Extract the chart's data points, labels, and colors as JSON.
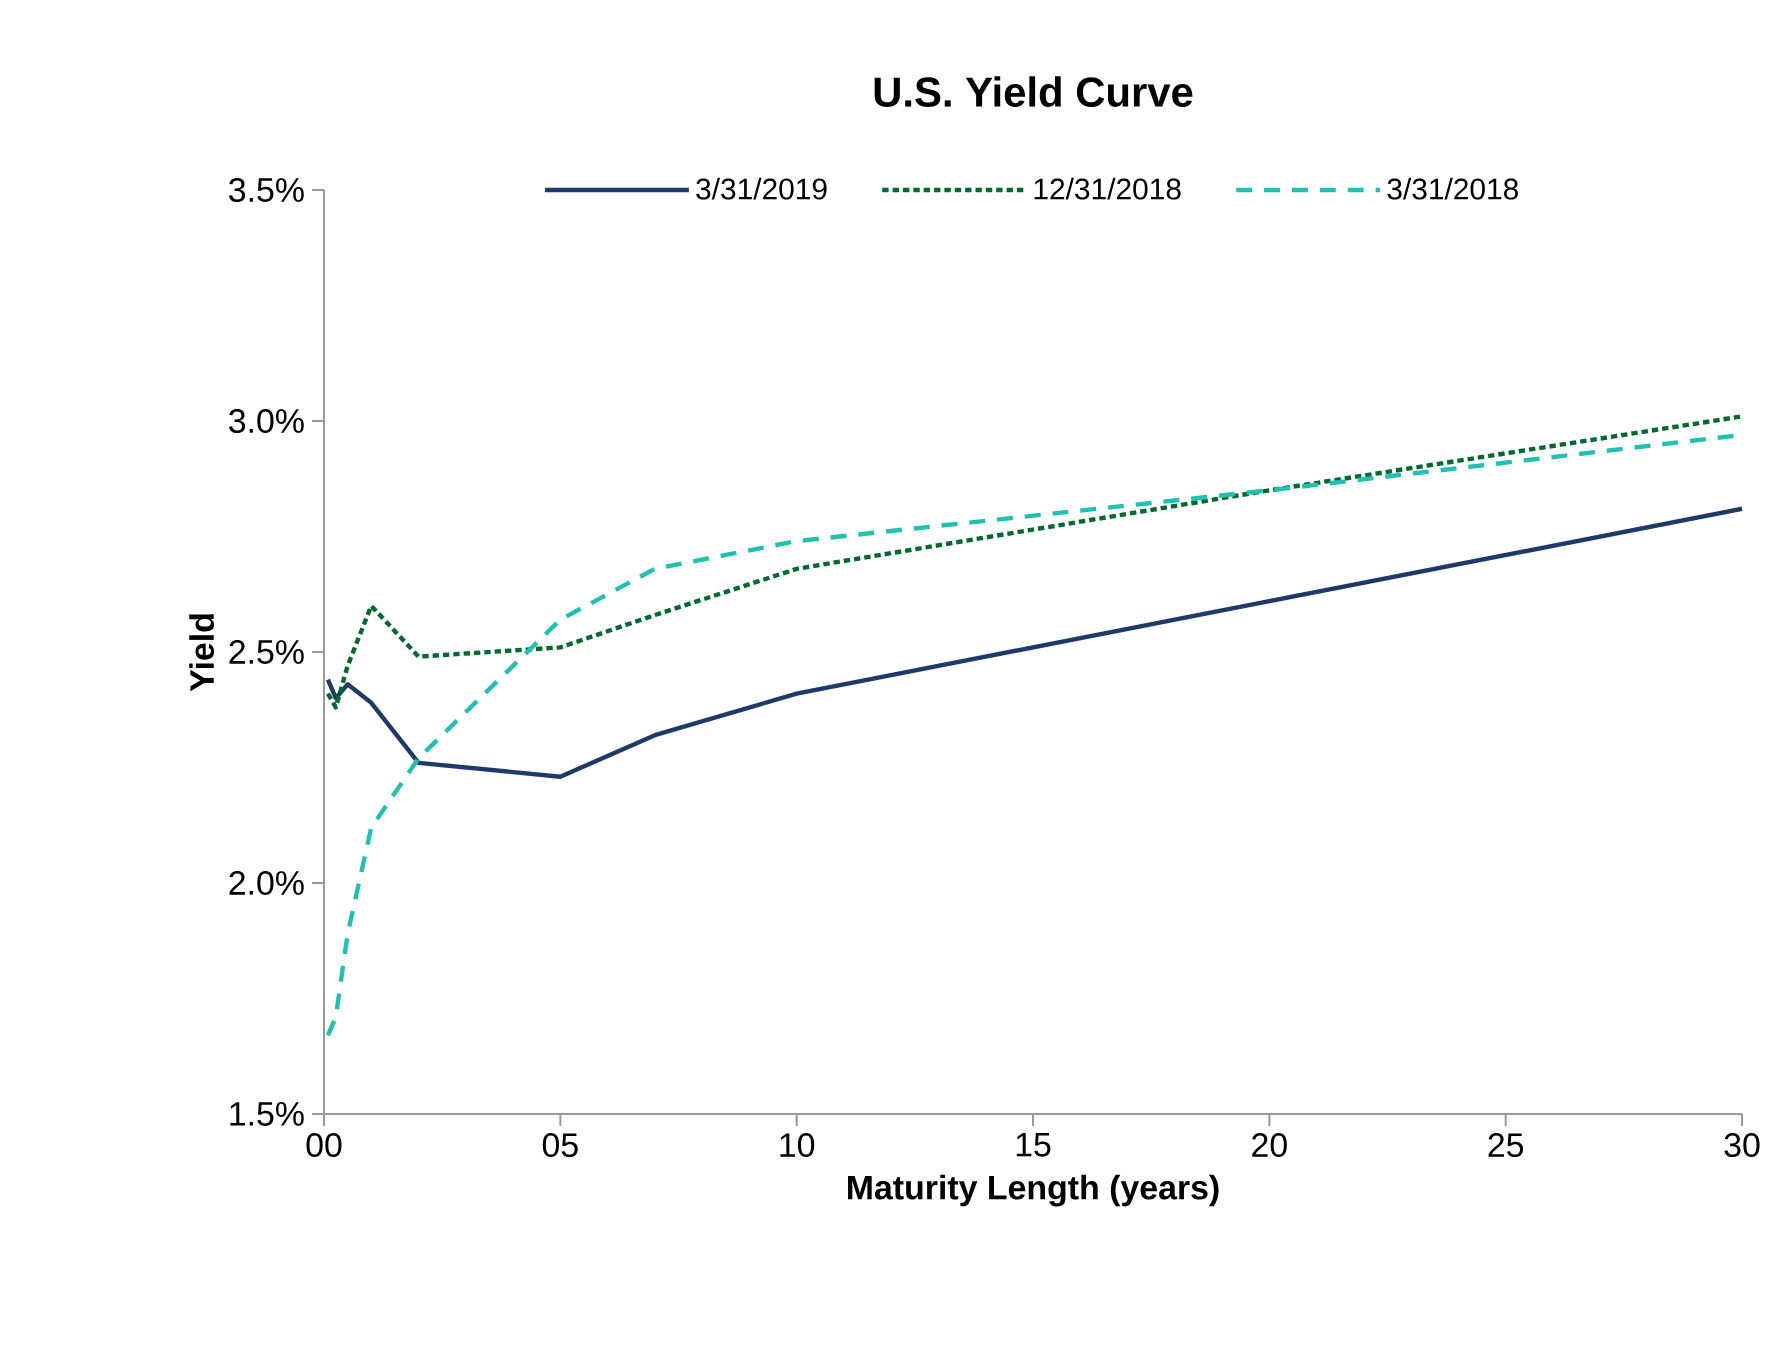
{
  "chart_data": {
    "type": "line",
    "title": "U.S. Yield Curve",
    "xlabel": "Maturity Length (years)",
    "ylabel": "Yield",
    "x": [
      0.083,
      0.25,
      0.5,
      1,
      2,
      5,
      7,
      10,
      20,
      30
    ],
    "series": [
      {
        "name": "3/31/2019",
        "color": "#1f3a68",
        "line_style": "solid",
        "values": [
          2.44,
          2.4,
          2.43,
          2.39,
          2.26,
          2.23,
          2.32,
          2.41,
          2.61,
          2.81
        ]
      },
      {
        "name": "12/31/2018",
        "color": "#00692e",
        "line_style": "dotted",
        "values": [
          2.41,
          2.38,
          2.47,
          2.6,
          2.49,
          2.51,
          2.58,
          2.68,
          2.85,
          3.01
        ]
      },
      {
        "name": "3/31/2018",
        "color": "#1fc1b0",
        "line_style": "dashed",
        "values": [
          1.67,
          1.71,
          1.89,
          2.12,
          2.27,
          2.57,
          2.68,
          2.74,
          2.85,
          2.97
        ]
      }
    ],
    "xlim": [
      0,
      30
    ],
    "ylim": [
      1.5,
      3.5
    ],
    "xticks": [
      {
        "value": 0,
        "label": "00"
      },
      {
        "value": 5,
        "label": "05"
      },
      10,
      15,
      20,
      25,
      30
    ],
    "yticks": [
      {
        "value": 1.5,
        "label": "1.5%"
      },
      {
        "value": 2.0,
        "label": "2.0%"
      },
      {
        "value": 2.5,
        "label": "2.5%"
      },
      {
        "value": 3.0,
        "label": "3.0%"
      },
      {
        "value": 3.5,
        "label": "3.5%"
      }
    ],
    "grid": false,
    "legend": "top"
  }
}
